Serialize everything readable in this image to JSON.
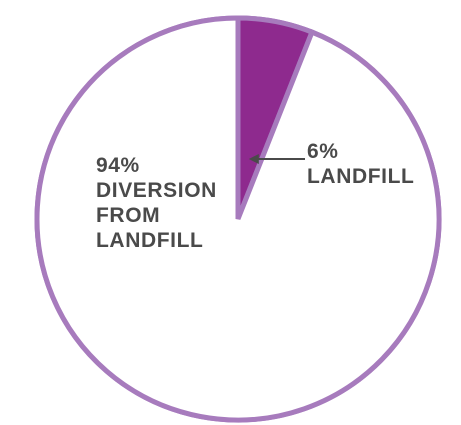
{
  "chart_data": {
    "type": "pie",
    "title": "",
    "slices": [
      {
        "label_lines": [
          "94%",
          "DIVERSION",
          "FROM",
          "LANDFILL"
        ],
        "value": 94,
        "color": "#ffffff"
      },
      {
        "label_lines": [
          "6%",
          "LANDFILL"
        ],
        "value": 6,
        "color": "#8e2a8e"
      }
    ],
    "outline_color": "#a77bbd",
    "label_color": "#4a4a4a",
    "legend": "none"
  }
}
